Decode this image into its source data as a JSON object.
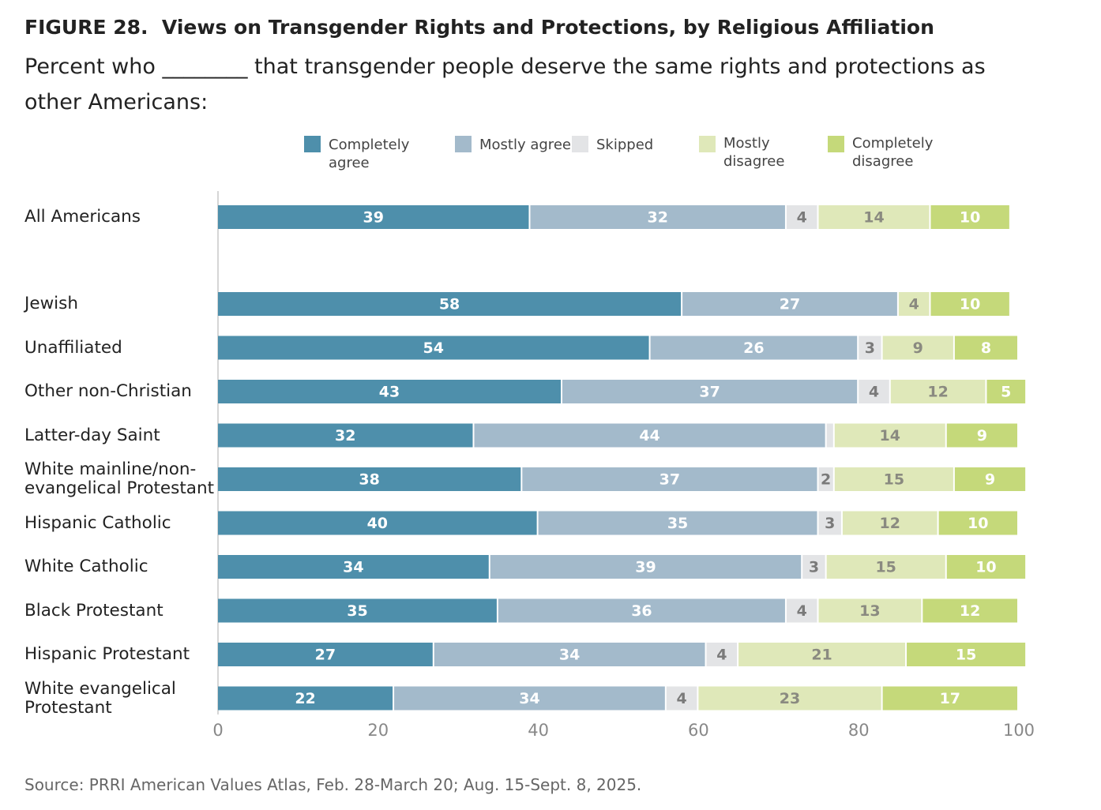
{
  "chart_data": {
    "type": "stacked-bar",
    "title": "FIGURE 28.  Views on Transgender Rights and Protections, by Religious Affiliation",
    "subtitle": "Percent who ________ that transgender people deserve the same rights and protections as other Americans:",
    "source": "Source: PRRI American Values Atlas, Feb. 28-March 20; Aug. 15-Sept. 8, 2025.",
    "categories": [
      "All Americans",
      "Jewish",
      "Unaffiliated",
      "Other non-Christian",
      "Latter-day Saint",
      "White mainline/non-evangelical Protestant",
      "Hispanic Catholic",
      "White Catholic",
      "Black Protestant",
      "Hispanic Protestant",
      "White evangelical Protestant"
    ],
    "series": [
      {
        "name": "Completely agree",
        "color": "#4e8fab",
        "label_color": "#ffffff",
        "values": [
          39,
          58,
          54,
          43,
          32,
          38,
          40,
          34,
          35,
          27,
          22
        ]
      },
      {
        "name": "Mostly agree",
        "color": "#a3bacb",
        "label_color": "#ffffff",
        "values": [
          32,
          27,
          26,
          37,
          44,
          37,
          35,
          39,
          36,
          34,
          34
        ]
      },
      {
        "name": "Skipped",
        "color": "#e3e4e6",
        "label_color": "#7a7a7a",
        "values": [
          4,
          0,
          3,
          4,
          1,
          2,
          3,
          3,
          4,
          4,
          4
        ]
      },
      {
        "name": "Mostly disagree",
        "color": "#dfe8b9",
        "label_color": "#8a8a80",
        "values": [
          14,
          4,
          9,
          12,
          14,
          15,
          12,
          15,
          13,
          21,
          23
        ]
      },
      {
        "name": "Completely disagree",
        "color": "#c5d97a",
        "label_color": "#ffffff",
        "values": [
          10,
          10,
          8,
          5,
          9,
          9,
          10,
          10,
          12,
          15,
          17
        ]
      }
    ],
    "xlim": [
      0,
      100
    ],
    "xticks": [
      0,
      20,
      40,
      60,
      80,
      100
    ]
  }
}
